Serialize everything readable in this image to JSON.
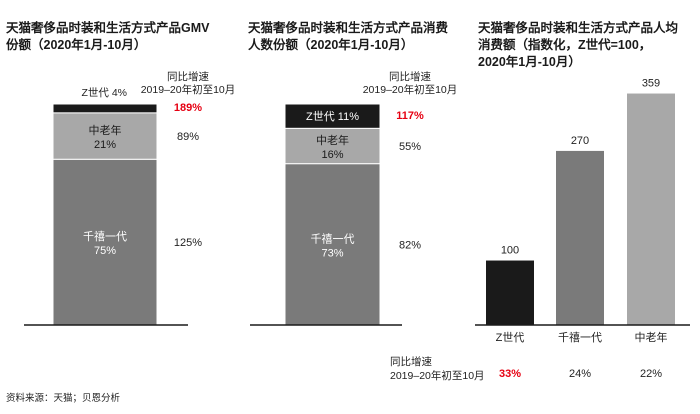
{
  "footnote": "资料来源：天猫；贝恩分析",
  "colors": {
    "z_gen": "#1a1a1a",
    "mid_old": "#a8a8a8",
    "millennial": "#7a7a7a",
    "highlight_red": "#e60012",
    "text": "#222222"
  },
  "chart_data": [
    {
      "type": "bar",
      "stacked": true,
      "title_lines": [
        "天猫奢侈品时装和生活方式产品GMV",
        "份额（2020年1月-10月）"
      ],
      "growth_header": [
        "同比增速",
        "2019–20年初至10月"
      ],
      "ylim": [
        0,
        100
      ],
      "segments": [
        {
          "name": "千禧一代",
          "label": "千禧一代",
          "pct_label": "75%",
          "value": 75,
          "growth": "125%",
          "highlight": false
        },
        {
          "name": "中老年",
          "label": "中老年",
          "pct_label": "21%",
          "value": 21,
          "growth": "89%",
          "highlight": false
        },
        {
          "name": "Z世代",
          "label": "Z世代 4%",
          "pct_label": "",
          "value": 4,
          "growth": "189%",
          "highlight": true
        }
      ]
    },
    {
      "type": "bar",
      "stacked": true,
      "title_lines": [
        "天猫奢侈品时装和生活方式产品消费",
        "人数份额（2020年1月-10月）"
      ],
      "growth_header": [
        "同比增速",
        "2019–20年初至10月"
      ],
      "ylim": [
        0,
        100
      ],
      "segments": [
        {
          "name": "千禧一代",
          "label": "千禧一代",
          "pct_label": "73%",
          "value": 73,
          "growth": "82%",
          "highlight": false
        },
        {
          "name": "中老年",
          "label": "中老年",
          "pct_label": "16%",
          "value": 16,
          "growth": "55%",
          "highlight": false
        },
        {
          "name": "Z世代",
          "label": "Z世代 11%",
          "pct_label": "",
          "value": 11,
          "growth": "117%",
          "highlight": true
        }
      ]
    },
    {
      "type": "bar",
      "title_lines": [
        "天猫奢侈品时装和生活方式产品人均",
        "消费额（指数化，Z世代=100，",
        "2020年1月-10月）"
      ],
      "growth_header": [
        "同比增速",
        "2019–20年初至10月"
      ],
      "ylim": [
        0,
        380
      ],
      "categories": [
        "Z世代",
        "千禧一代",
        "中老年"
      ],
      "values": [
        100,
        270,
        359
      ],
      "value_labels": [
        "100",
        "270",
        "359"
      ],
      "growth": [
        "33%",
        "24%",
        "22%"
      ],
      "growth_highlight": [
        true,
        false,
        false
      ]
    }
  ]
}
